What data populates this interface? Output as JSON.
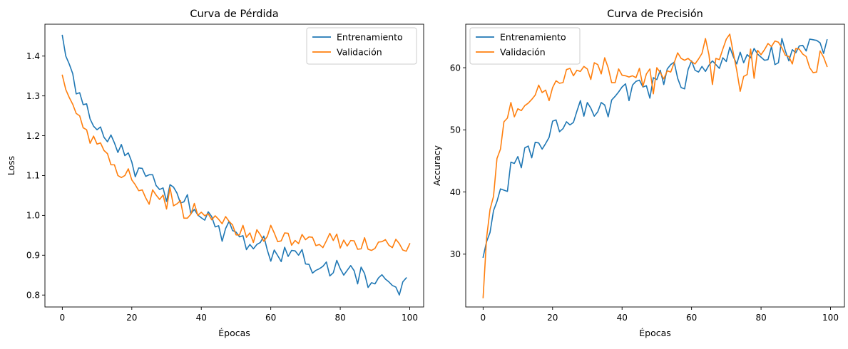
{
  "chart_data": [
    {
      "type": "line",
      "title": "Curva de Pérdida",
      "xlabel": "Épocas",
      "ylabel": "Loss",
      "xlim": [
        -5,
        104
      ],
      "ylim": [
        0.77,
        1.48
      ],
      "xticks": [
        0,
        20,
        40,
        60,
        80,
        100
      ],
      "yticks": [
        0.8,
        0.9,
        1.0,
        1.1,
        1.2,
        1.3,
        1.4
      ],
      "tick_format": 1,
      "legend_position": "top-right",
      "grid": false,
      "series": [
        {
          "name": "Entrenamiento",
          "color": "#1f77b4",
          "values": [
            1.452,
            1.4,
            1.38,
            1.356,
            1.305,
            1.308,
            1.278,
            1.28,
            1.242,
            1.224,
            1.215,
            1.222,
            1.196,
            1.185,
            1.202,
            1.182,
            1.158,
            1.178,
            1.15,
            1.157,
            1.134,
            1.097,
            1.119,
            1.118,
            1.098,
            1.102,
            1.102,
            1.075,
            1.065,
            1.069,
            1.035,
            1.077,
            1.071,
            1.056,
            1.031,
            1.034,
            1.052,
            1.004,
            1.015,
            1.001,
            0.994,
            0.988,
            1.009,
            0.997,
            0.971,
            0.974,
            0.935,
            0.967,
            0.985,
            0.962,
            0.958,
            0.946,
            0.949,
            0.914,
            0.927,
            0.916,
            0.927,
            0.932,
            0.948,
            0.913,
            0.885,
            0.913,
            0.899,
            0.884,
            0.92,
            0.897,
            0.912,
            0.911,
            0.9,
            0.914,
            0.878,
            0.877,
            0.855,
            0.862,
            0.866,
            0.872,
            0.883,
            0.848,
            0.856,
            0.887,
            0.866,
            0.85,
            0.862,
            0.874,
            0.861,
            0.828,
            0.87,
            0.854,
            0.819,
            0.831,
            0.828,
            0.843,
            0.851,
            0.84,
            0.833,
            0.824,
            0.82,
            0.8,
            0.833,
            0.843
          ]
        },
        {
          "name": "Validación",
          "color": "#ff7f0e",
          "values": [
            1.352,
            1.316,
            1.296,
            1.279,
            1.256,
            1.25,
            1.22,
            1.215,
            1.181,
            1.199,
            1.179,
            1.182,
            1.163,
            1.155,
            1.127,
            1.127,
            1.1,
            1.095,
            1.1,
            1.117,
            1.089,
            1.077,
            1.062,
            1.064,
            1.044,
            1.028,
            1.064,
            1.051,
            1.04,
            1.051,
            1.016,
            1.07,
            1.024,
            1.029,
            1.037,
            0.993,
            0.993,
            1.003,
            1.03,
            1.0,
            1.008,
            0.999,
            1.004,
            0.989,
            0.999,
            0.99,
            0.979,
            0.997,
            0.985,
            0.976,
            0.951,
            0.951,
            0.975,
            0.945,
            0.956,
            0.932,
            0.964,
            0.951,
            0.935,
            0.947,
            0.975,
            0.956,
            0.934,
            0.936,
            0.956,
            0.955,
            0.925,
            0.937,
            0.929,
            0.952,
            0.939,
            0.946,
            0.945,
            0.924,
            0.927,
            0.919,
            0.936,
            0.955,
            0.937,
            0.953,
            0.918,
            0.938,
            0.923,
            0.937,
            0.936,
            0.915,
            0.916,
            0.944,
            0.915,
            0.912,
            0.917,
            0.933,
            0.934,
            0.939,
            0.925,
            0.919,
            0.94,
            0.929,
            0.913,
            0.91,
            0.929
          ]
        }
      ]
    },
    {
      "type": "line",
      "title": "Curva de Precisión",
      "xlabel": "Épocas",
      "ylabel": "Accuracy",
      "xlim": [
        -5,
        104
      ],
      "ylim": [
        21.5,
        67.0
      ],
      "xticks": [
        0,
        20,
        40,
        60,
        80,
        100
      ],
      "yticks": [
        30,
        40,
        50,
        60
      ],
      "tick_format": 0,
      "legend_position": "top-left",
      "grid": false,
      "series": [
        {
          "name": "Entrenamiento",
          "color": "#1f77b4",
          "values": [
            29.5,
            32.0,
            33.5,
            37.0,
            38.5,
            40.5,
            40.3,
            40.1,
            44.8,
            44.6,
            45.7,
            43.9,
            47.1,
            47.4,
            45.5,
            48.0,
            47.9,
            46.9,
            47.8,
            48.8,
            51.4,
            51.6,
            49.7,
            50.2,
            51.3,
            50.8,
            51.2,
            53.0,
            54.7,
            52.2,
            54.4,
            53.5,
            52.2,
            52.9,
            54.4,
            54.0,
            52.1,
            54.8,
            55.4,
            56.1,
            56.9,
            57.4,
            54.7,
            57.2,
            57.8,
            58.0,
            56.9,
            57.1,
            55.1,
            58.4,
            58.1,
            59.6,
            57.3,
            59.8,
            60.5,
            60.9,
            58.3,
            56.8,
            56.6,
            59.7,
            61.1,
            59.6,
            59.3,
            60.2,
            59.4,
            60.4,
            61.1,
            60.5,
            59.9,
            61.6,
            61.0,
            63.3,
            61.8,
            60.6,
            62.5,
            60.8,
            62.1,
            61.6,
            63.1,
            62.2,
            61.7,
            61.2,
            61.3,
            63.4,
            60.5,
            60.8,
            64.7,
            62.7,
            61.1,
            62.9,
            62.4,
            63.5,
            63.6,
            62.7,
            64.6,
            64.5,
            64.4,
            64.0,
            62.3,
            64.5
          ]
        },
        {
          "name": "Validación",
          "color": "#ff7f0e",
          "values": [
            23.0,
            32.6,
            37.2,
            39.3,
            45.4,
            46.9,
            51.3,
            51.9,
            54.4,
            52.1,
            53.4,
            53.1,
            53.9,
            54.3,
            54.9,
            55.6,
            57.2,
            56.0,
            56.4,
            54.7,
            56.8,
            57.9,
            57.5,
            57.6,
            59.7,
            59.9,
            58.7,
            59.6,
            59.4,
            60.2,
            59.8,
            58.1,
            60.8,
            60.5,
            59.0,
            61.6,
            60.0,
            57.6,
            57.6,
            59.8,
            58.8,
            58.7,
            58.5,
            58.7,
            58.4,
            59.9,
            57.0,
            59.0,
            59.8,
            55.8,
            60.0,
            59.2,
            58.2,
            59.5,
            59.3,
            60.8,
            62.4,
            61.5,
            61.2,
            61.5,
            61.0,
            60.6,
            61.4,
            62.3,
            64.7,
            62.1,
            57.3,
            61.5,
            61.3,
            63.0,
            64.6,
            65.4,
            62.4,
            59.6,
            56.2,
            58.6,
            58.9,
            63.0,
            58.3,
            62.8,
            62.1,
            62.9,
            63.9,
            63.4,
            64.3,
            64.1,
            63.2,
            62.0,
            61.8,
            60.6,
            63.1,
            63.0,
            62.2,
            61.8,
            60.0,
            59.2,
            59.3,
            62.7,
            61.7,
            60.2
          ]
        }
      ]
    }
  ]
}
